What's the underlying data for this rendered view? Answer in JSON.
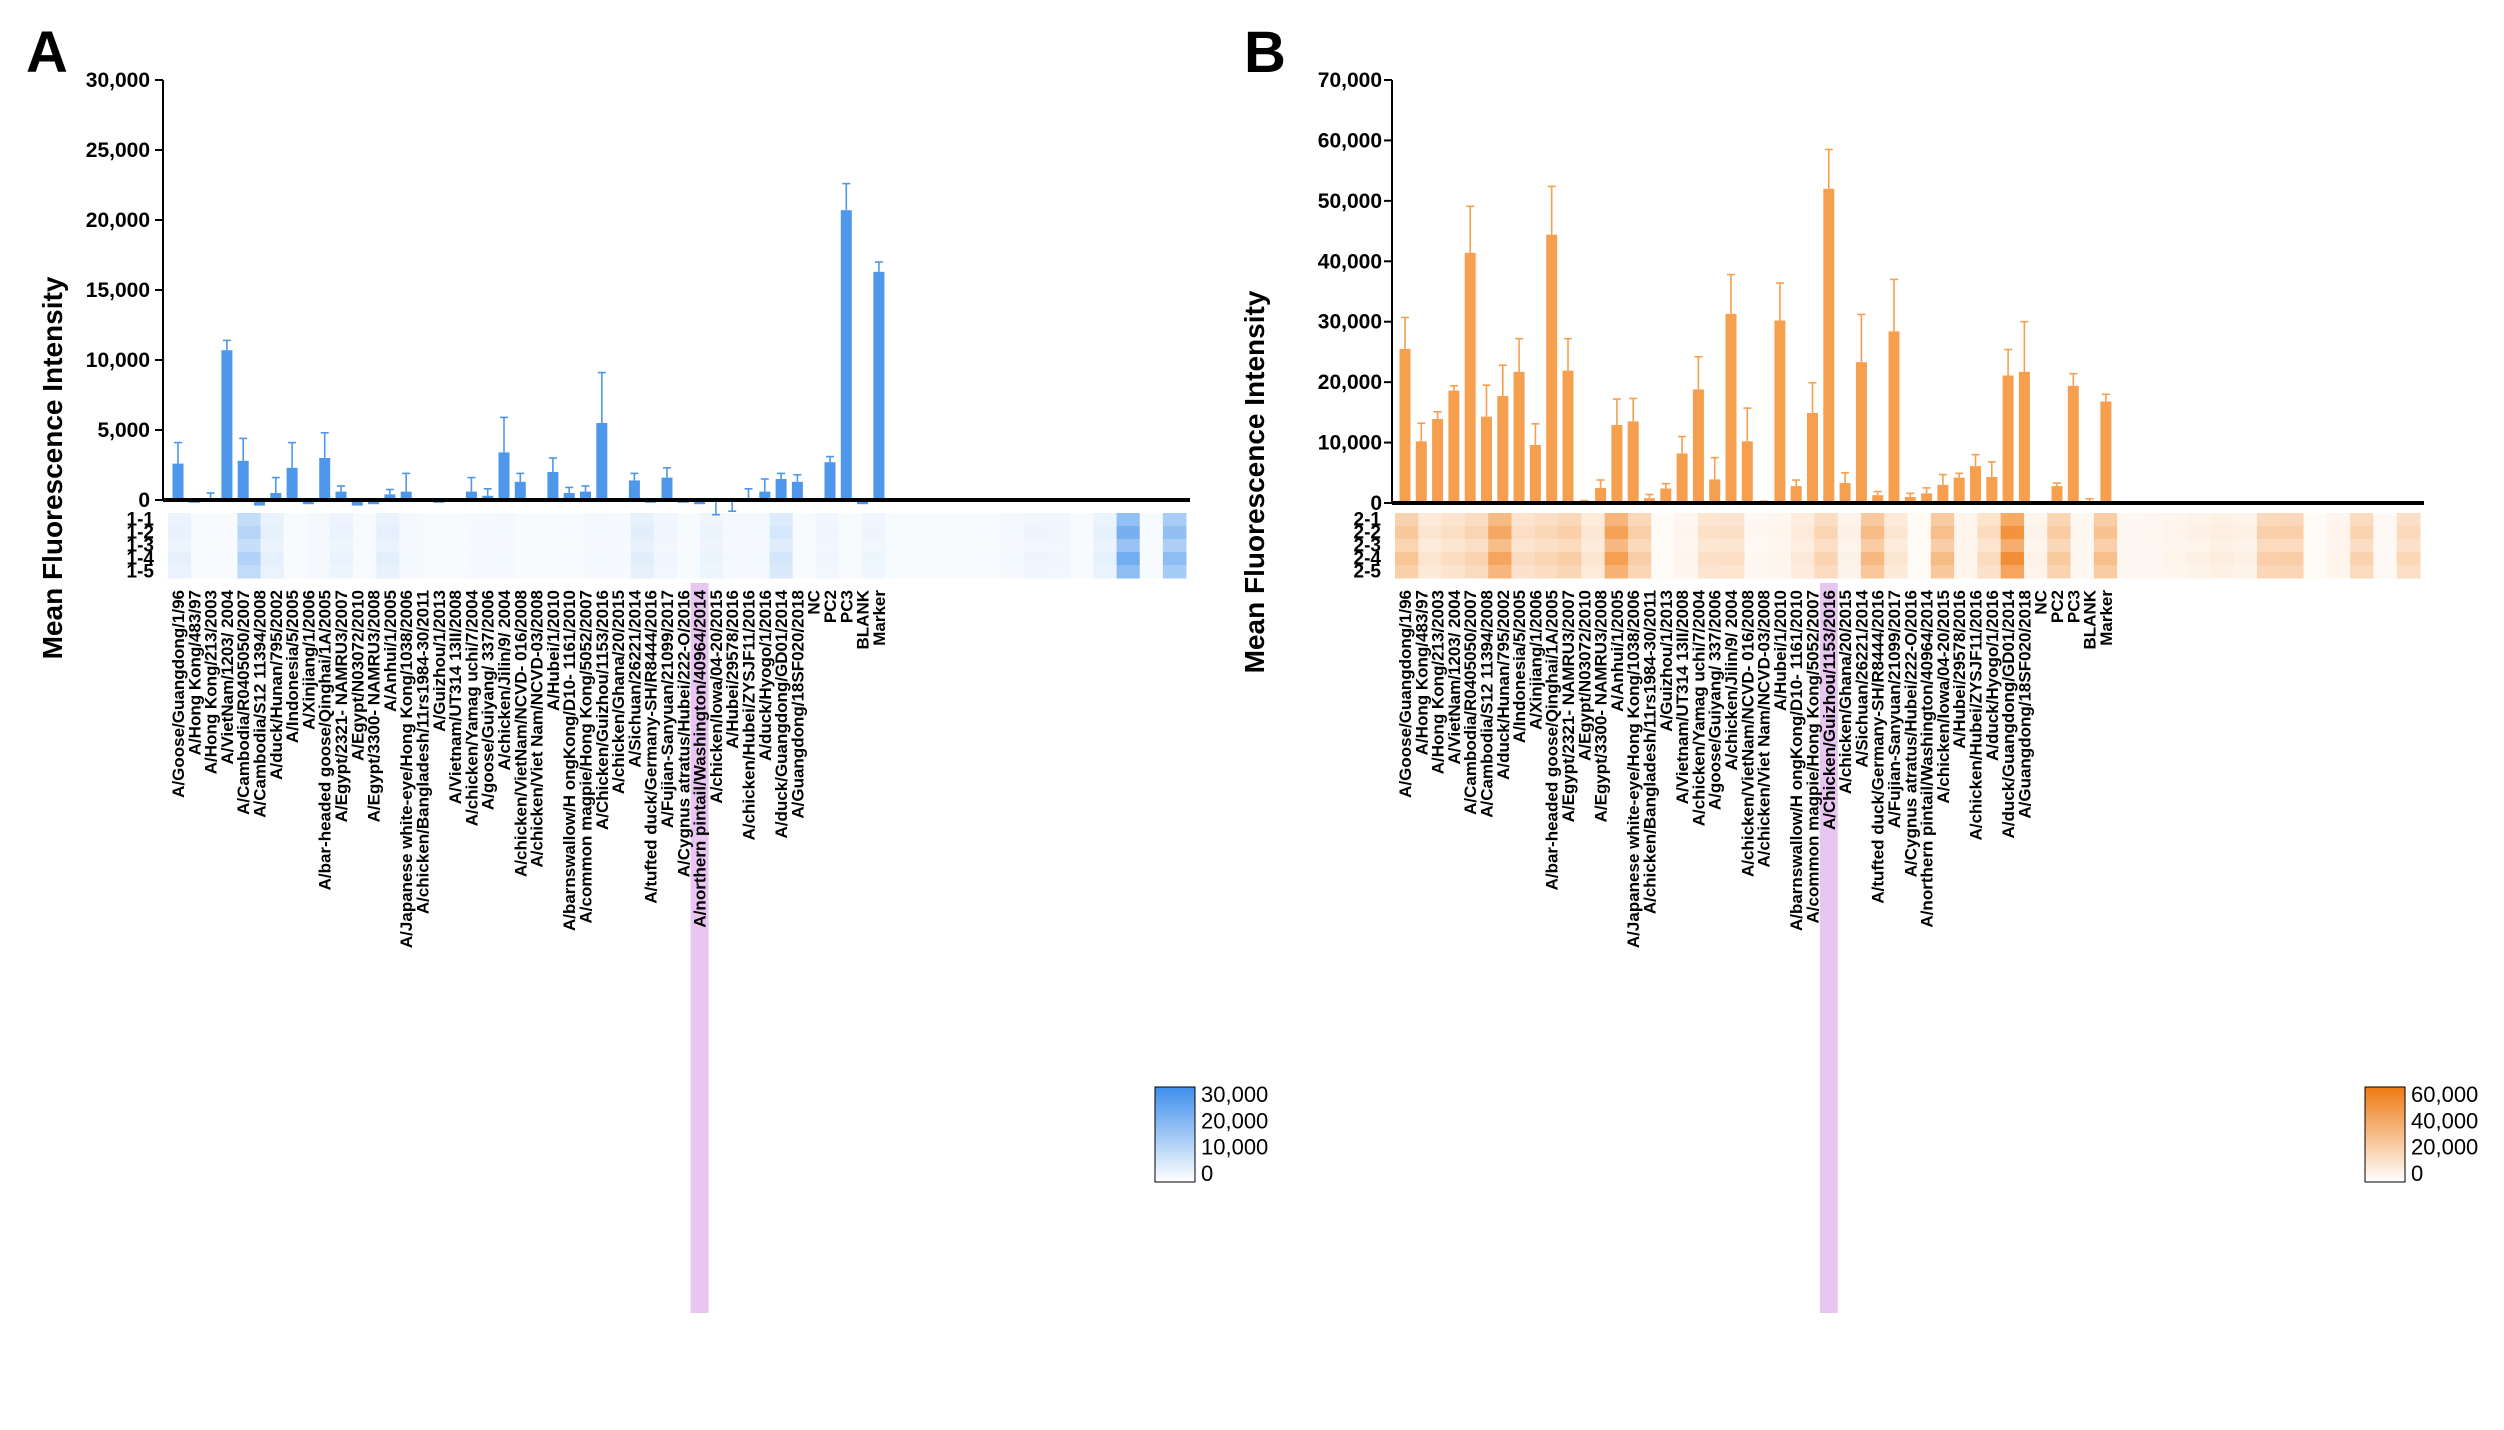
{
  "panels": [
    {
      "letter": "A"
    },
    {
      "letter": "B"
    }
  ],
  "chart_data": [
    {
      "panel": "A",
      "type": "bar",
      "ylabel": "Mean Fluorescence Intensity",
      "ylim": [
        0,
        30000
      ],
      "yticks": [
        0,
        5000,
        10000,
        15000,
        20000,
        25000,
        30000
      ],
      "ytick_labels": [
        "0",
        "5,000",
        "10,000",
        "15,000",
        "20,000",
        "25,000",
        "30,000"
      ],
      "color": "#4E97EA",
      "highlight_color": "#E3B8EE",
      "highlight_index": 32,
      "categories": [
        "A/Goose/Guangdong/1/96",
        "A/Hong Kong/483/97",
        "A/Hong Kong/213/2003",
        "A/VietNam/1203/ 2004",
        "A/Cambodia/R0405050/2007",
        "A/Cambodia/S12 11394/2008",
        "A/duck/Hunan/795/2002",
        "A/Indonesia/5/2005",
        "A/Xinjiang/1/2006",
        "A/bar-headed goose/Qinghai/1A/2005",
        "A/Egypt/2321- NAMRU3/2007",
        "A/Egypt/N03072/2010",
        "A/Egypt/3300- NAMRU3/2008",
        "A/Anhui/1/2005",
        "A/Japanese white-eye/Hong Kong/1038/2006",
        "A/chicken/Bangladesh/11rs1984-30/2011",
        "A/Guizhou/1/2013",
        "A/Vietnam/UT314 13II/2008",
        "A/chicken/Yamag uchi/7/2004",
        "A/goose/Guiyang/ 337/2006",
        "A/chicken/Jilin/9/ 2004",
        "A/chicken/VietNam/NCVD- 016/2008",
        "A/chicken/Viet Nam/NCVD-03/2008",
        "A/Hubei/1/2010",
        "A/barnswallow/H ongKong/D10- 1161/2010",
        "A/common magpie/Hong Kong/5052/2007",
        "A/Chicken/Guizhou/1153/2016",
        "A/chicken/Ghana/20/2015",
        "A/Sichuan/26221/2014",
        "A/tufted duck/Germany-SH/R8444/2016",
        "A/Fujian-Sanyuan/21099/2017",
        "A/Cygnus atratus/Hubei/222-O/2016",
        "A/northern pintail/Washington/40964/2014",
        "A/chicken/Iowa/04-20/2015",
        "A/Hubei/29578/2016",
        "A/chicken/Hubei/ZYSJF11/2016",
        "A/duck/Hyogo/1/2016",
        "A/duck/Guangdong/GD01/2014",
        "A/Guangdong/18SF020/2018",
        "NC",
        "PC2",
        "PC3",
        "BLANK",
        "Marker"
      ],
      "values": [
        2600,
        -200,
        100,
        10700,
        2800,
        -400,
        500,
        2300,
        -300,
        3000,
        600,
        -400,
        -300,
        400,
        600,
        -100,
        -200,
        100,
        600,
        300,
        3400,
        1300,
        -100,
        2000,
        500,
        600,
        5500,
        -100,
        1400,
        -200,
        1600,
        -200,
        -300,
        -50,
        -100,
        100,
        600,
        1500,
        1300,
        10,
        2700,
        20700,
        -300,
        16300
      ],
      "errors": [
        1500,
        0,
        400,
        700,
        1600,
        0,
        1100,
        1800,
        0,
        1800,
        400,
        0,
        0,
        350,
        1300,
        0,
        0,
        0,
        1000,
        500,
        2500,
        600,
        0,
        1000,
        400,
        400,
        3600,
        0,
        500,
        0,
        700,
        0,
        0,
        1000,
        700,
        700,
        900,
        400,
        500,
        0,
        400,
        1900,
        0,
        700
      ],
      "heatmap": {
        "rows": [
          "1-1",
          "1-2",
          "1-3",
          "1-4",
          "1-5"
        ],
        "scale_ticks": [
          "30,000",
          "20,000",
          "10,000",
          "0"
        ],
        "color_max": "#4A96EC",
        "vmax": 30000
      }
    },
    {
      "panel": "B",
      "type": "bar",
      "ylabel": "Mean Fluorescence Intensity",
      "ylim": [
        0,
        70000
      ],
      "yticks": [
        0,
        10000,
        20000,
        30000,
        40000,
        50000,
        60000,
        70000
      ],
      "ytick_labels": [
        "0",
        "10,000",
        "20,000",
        "30,000",
        "40,000",
        "50,000",
        "60,000",
        "70,000"
      ],
      "color": "#F6A04F",
      "highlight_color": "#E3B8EE",
      "highlight_index": 26,
      "categories": [
        "A/Goose/Guangdong/1/96",
        "A/Hong Kong/483/97",
        "A/Hong Kong/213/2003",
        "A/VietNam/1203/ 2004",
        "A/Cambodia/R0405050/2007",
        "A/Cambodia/S12 11394/2008",
        "A/duck/Hunan/795/2002",
        "A/Indonesia/5/2005",
        "A/Xinjiang/1/2006",
        "A/bar-headed goose/Qinghai/1A/2005",
        "A/Egypt/2321- NAMRU3/2007",
        "A/Egypt/N03072/2010",
        "A/Egypt/3300- NAMRU3/2008",
        "A/Anhui/1/2005",
        "A/Japanese white-eye/Hong Kong/1038/2006",
        "A/chicken/Bangladesh/11rs1984-30/2011",
        "A/Guizhou/1/2013",
        "A/Vietnam/UT314 13II/2008",
        "A/chicken/Yamag uchi/7/2004",
        "A/goose/Guiyang/ 337/2006",
        "A/chicken/Jilin/9/ 2004",
        "A/chicken/VietNam/NCVD- 016/2008",
        "A/chicken/Viet Nam/NCVD-03/2008",
        "A/Hubei/1/2010",
        "A/barnswallow/H ongKong/D10- 1161/2010",
        "A/common magpie/Hong Kong/5052/2007",
        "A/Chicken/Guizhou/1153/2016",
        "A/chicken/Ghana/20/2015",
        "A/Sichuan/26221/2014",
        "A/tufted duck/Germany-SH/R8444/2016",
        "A/Fujian-Sanyuan/21099/2017",
        "A/Cygnus atratus/Hubei/222-O/2016",
        "A/northern pintail/Washington/40964/2014",
        "A/chicken/Iowa/04-20/2015",
        "A/Hubei/29578/2016",
        "A/chicken/Hubei/ZYSJF11/2016",
        "A/duck/Hyogo/1/2016",
        "A/duck/Guangdong/GD01/2014",
        "A/Guangdong/18SF020/2018",
        "NC",
        "PC2",
        "PC3",
        "BLANK",
        "Marker"
      ],
      "values": [
        25500,
        10200,
        13900,
        18600,
        41400,
        14300,
        17700,
        21700,
        9600,
        44400,
        21900,
        0,
        2500,
        12900,
        13500,
        800,
        2400,
        8200,
        18800,
        3900,
        31300,
        10200,
        0,
        30200,
        2800,
        14900,
        52000,
        3300,
        23300,
        1300,
        28400,
        1000,
        1600,
        3000,
        4200,
        6100,
        4300,
        21100,
        21700,
        0,
        2800,
        19400,
        300,
        16800
      ],
      "errors": [
        5200,
        3000,
        1200,
        800,
        7700,
        5200,
        5100,
        5500,
        3500,
        8000,
        5300,
        400,
        1300,
        4300,
        3800,
        600,
        800,
        2800,
        5400,
        3600,
        6500,
        5500,
        300,
        6200,
        1000,
        5000,
        6500,
        1700,
        7900,
        600,
        8600,
        600,
        900,
        1700,
        700,
        1900,
        2500,
        4300,
        8300,
        0,
        500,
        2000,
        400,
        1200
      ],
      "heatmap": {
        "rows": [
          "2-1",
          "2-2",
          "2-3",
          "2-4",
          "2-5"
        ],
        "scale_ticks": [
          "60,000",
          "40,000",
          "20,000",
          "0"
        ],
        "color_max": "#F07A10",
        "vmax": 70000
      }
    }
  ]
}
